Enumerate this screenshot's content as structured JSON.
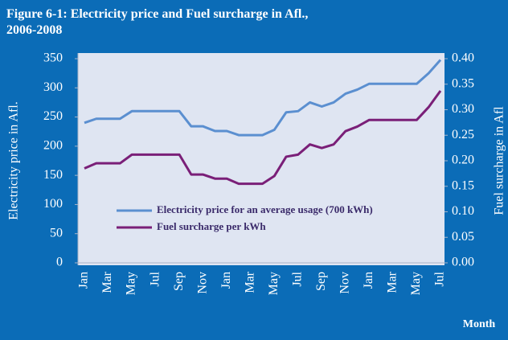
{
  "chart_data": {
    "type": "line",
    "title": "Figure 6-1: Electricity price and Fuel surcharge in Afl.,",
    "subtitle": "2006-2008",
    "xlabel": "Month",
    "ylabel": "Electricity price in Afl.",
    "y2label": "Fuel surcharge in Afl",
    "categories": [
      "Jan",
      null,
      "Mar",
      null,
      "May",
      null,
      "Jul",
      null,
      "Sep",
      null,
      "Nov",
      null,
      "Jan",
      null,
      "Mar",
      null,
      "May",
      null,
      "Jul",
      null,
      "Sep",
      null,
      "Nov",
      null,
      "Jan",
      null,
      "Mar",
      null,
      "May",
      null,
      "Jul"
    ],
    "series": [
      {
        "name": "Electricity price for an average usage (700 kWh)",
        "color": "#5b8fd0",
        "values": [
          240,
          247,
          247,
          247,
          260,
          260,
          260,
          260,
          260,
          234,
          234,
          226,
          226,
          219,
          219,
          219,
          228,
          258,
          260,
          275,
          268,
          275,
          290,
          297,
          307,
          307,
          307,
          307,
          307,
          325,
          348
        ]
      },
      {
        "name": "Fuel surcharge per kWh",
        "color": "#7a1f78",
        "axis": "y2",
        "values": [
          0.185,
          0.195,
          0.195,
          0.195,
          0.212,
          0.212,
          0.212,
          0.212,
          0.212,
          0.173,
          0.173,
          0.165,
          0.165,
          0.155,
          0.155,
          0.155,
          0.17,
          0.208,
          0.212,
          0.232,
          0.225,
          0.232,
          0.258,
          0.267,
          0.28,
          0.28,
          0.28,
          0.28,
          0.28,
          0.305,
          0.337
        ]
      }
    ],
    "ylim": [
      0,
      350
    ],
    "yticks": [
      0,
      50,
      100,
      150,
      200,
      250,
      300,
      350
    ],
    "y2lim": [
      0,
      0.4
    ],
    "y2ticks": [
      {
        "value": 0,
        "label": "0.00"
      },
      {
        "value": 0.05,
        "label": "0.05"
      },
      {
        "value": 0.1,
        "label": "0.10"
      },
      {
        "value": 0.15,
        "label": "0.15"
      },
      {
        "value": 0.2,
        "label": "0.20"
      },
      {
        "value": 0.25,
        "label": "0.25"
      },
      {
        "value": 0.3,
        "label": "0.30"
      },
      {
        "value": 0.35,
        "label": "0.35"
      },
      {
        "value": 0.4,
        "label": "0.40"
      }
    ],
    "grid": false,
    "legend": "lower right"
  }
}
